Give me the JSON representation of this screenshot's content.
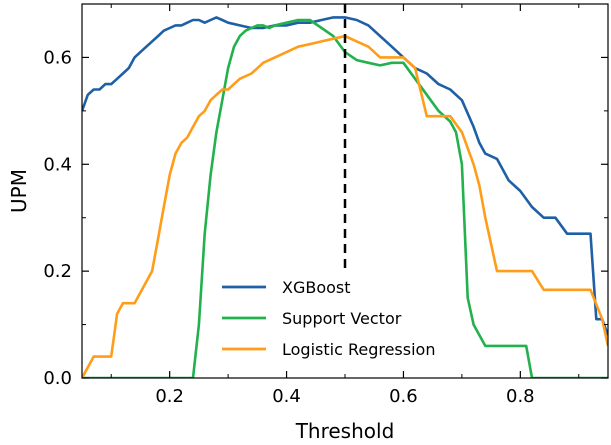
{
  "chart_data": {
    "type": "line",
    "title": "",
    "xlabel": "Threshold",
    "ylabel": "UPM",
    "xlim": [
      0.05,
      0.95
    ],
    "ylim": [
      0.0,
      0.7
    ],
    "xticks": [
      0.2,
      0.4,
      0.6,
      0.8
    ],
    "xtick_labels": [
      "0.2",
      "0.4",
      "0.6",
      "0.8"
    ],
    "yticks": [
      0.0,
      0.2,
      0.4,
      0.6
    ],
    "ytick_labels": [
      "0.0",
      "0.2",
      "0.4",
      "0.6"
    ],
    "reference_line": {
      "x": 0.5,
      "style": "dashed",
      "color": "#000000"
    },
    "legend_position": "lower-center",
    "series": [
      {
        "name": "XGBoost",
        "color": "#1f5fa6",
        "x": [
          0.05,
          0.06,
          0.07,
          0.08,
          0.09,
          0.1,
          0.11,
          0.12,
          0.13,
          0.14,
          0.15,
          0.16,
          0.17,
          0.18,
          0.19,
          0.2,
          0.21,
          0.22,
          0.23,
          0.24,
          0.25,
          0.26,
          0.27,
          0.28,
          0.29,
          0.3,
          0.32,
          0.34,
          0.36,
          0.38,
          0.4,
          0.42,
          0.44,
          0.46,
          0.48,
          0.5,
          0.52,
          0.54,
          0.56,
          0.58,
          0.6,
          0.62,
          0.64,
          0.66,
          0.68,
          0.7,
          0.72,
          0.73,
          0.74,
          0.76,
          0.78,
          0.8,
          0.82,
          0.84,
          0.86,
          0.88,
          0.9,
          0.92,
          0.93,
          0.94,
          0.95
        ],
        "values": [
          0.5,
          0.53,
          0.54,
          0.54,
          0.55,
          0.55,
          0.56,
          0.57,
          0.58,
          0.6,
          0.61,
          0.62,
          0.63,
          0.64,
          0.65,
          0.655,
          0.66,
          0.66,
          0.665,
          0.67,
          0.67,
          0.665,
          0.67,
          0.675,
          0.67,
          0.665,
          0.66,
          0.655,
          0.655,
          0.66,
          0.66,
          0.665,
          0.665,
          0.67,
          0.675,
          0.675,
          0.67,
          0.66,
          0.64,
          0.62,
          0.6,
          0.58,
          0.57,
          0.55,
          0.54,
          0.52,
          0.47,
          0.44,
          0.42,
          0.41,
          0.37,
          0.35,
          0.32,
          0.3,
          0.3,
          0.27,
          0.27,
          0.27,
          0.11,
          0.11,
          0.08
        ]
      },
      {
        "name": "Support Vector",
        "color": "#22b14c",
        "x": [
          0.05,
          0.24,
          0.25,
          0.26,
          0.27,
          0.28,
          0.29,
          0.3,
          0.31,
          0.32,
          0.33,
          0.34,
          0.35,
          0.36,
          0.37,
          0.38,
          0.4,
          0.42,
          0.44,
          0.46,
          0.48,
          0.5,
          0.52,
          0.54,
          0.56,
          0.58,
          0.6,
          0.62,
          0.64,
          0.66,
          0.68,
          0.69,
          0.7,
          0.71,
          0.72,
          0.74,
          0.75,
          0.76,
          0.78,
          0.8,
          0.81,
          0.82,
          0.95
        ],
        "values": [
          0.0,
          0.0,
          0.1,
          0.27,
          0.38,
          0.46,
          0.52,
          0.58,
          0.62,
          0.64,
          0.65,
          0.655,
          0.66,
          0.66,
          0.655,
          0.66,
          0.665,
          0.67,
          0.67,
          0.655,
          0.64,
          0.61,
          0.595,
          0.59,
          0.585,
          0.59,
          0.59,
          0.56,
          0.53,
          0.5,
          0.48,
          0.46,
          0.4,
          0.15,
          0.1,
          0.06,
          0.06,
          0.06,
          0.06,
          0.06,
          0.06,
          0.0,
          0.0
        ]
      },
      {
        "name": "Logistic Regression",
        "color": "#ff9d18",
        "x": [
          0.05,
          0.07,
          0.1,
          0.11,
          0.12,
          0.13,
          0.14,
          0.15,
          0.16,
          0.17,
          0.18,
          0.19,
          0.2,
          0.21,
          0.22,
          0.23,
          0.24,
          0.25,
          0.26,
          0.27,
          0.28,
          0.29,
          0.3,
          0.31,
          0.32,
          0.34,
          0.36,
          0.38,
          0.4,
          0.42,
          0.44,
          0.46,
          0.48,
          0.5,
          0.52,
          0.54,
          0.56,
          0.58,
          0.6,
          0.62,
          0.64,
          0.66,
          0.68,
          0.7,
          0.72,
          0.73,
          0.74,
          0.76,
          0.78,
          0.8,
          0.82,
          0.84,
          0.86,
          0.88,
          0.9,
          0.92,
          0.94,
          0.95
        ],
        "values": [
          0.0,
          0.04,
          0.04,
          0.12,
          0.14,
          0.14,
          0.14,
          0.16,
          0.18,
          0.2,
          0.26,
          0.32,
          0.38,
          0.42,
          0.44,
          0.45,
          0.47,
          0.49,
          0.5,
          0.52,
          0.53,
          0.54,
          0.54,
          0.55,
          0.56,
          0.57,
          0.59,
          0.6,
          0.61,
          0.62,
          0.625,
          0.63,
          0.635,
          0.64,
          0.63,
          0.62,
          0.6,
          0.6,
          0.6,
          0.58,
          0.49,
          0.49,
          0.49,
          0.46,
          0.4,
          0.36,
          0.3,
          0.2,
          0.2,
          0.2,
          0.2,
          0.165,
          0.165,
          0.165,
          0.165,
          0.165,
          0.11,
          0.06
        ]
      }
    ]
  }
}
